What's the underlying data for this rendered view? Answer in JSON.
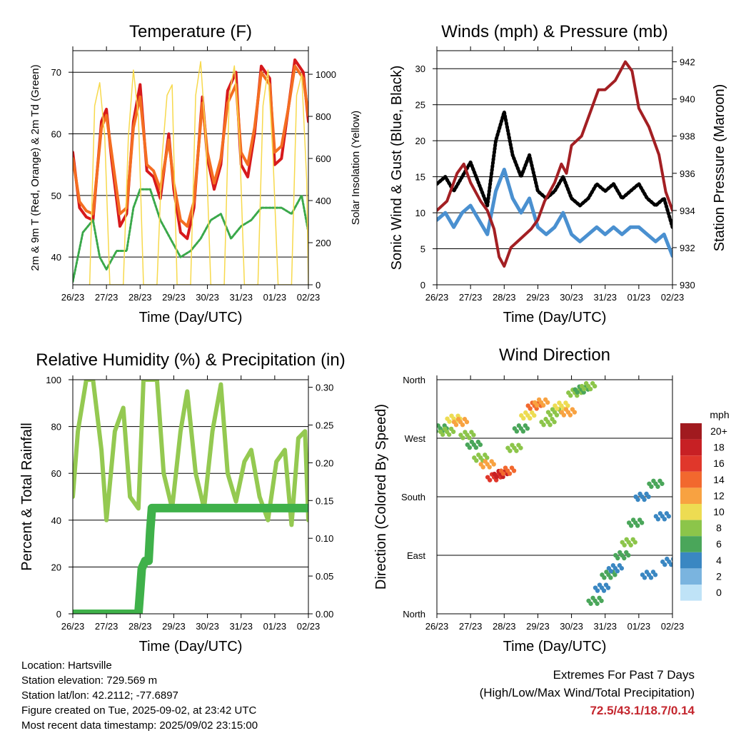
{
  "x_ticks": [
    "26/23",
    "27/23",
    "28/23",
    "29/23",
    "30/23",
    "31/23",
    "01/23",
    "02/23"
  ],
  "colors": {
    "temp_2m": "#d7191c",
    "temp_9m": "#f46d21",
    "dewpoint": "#3aa84a",
    "solar": "#f7d94c",
    "gust": "#000000",
    "wind": "#4a90d0",
    "pressure": "#a31f23",
    "rh": "#94c951",
    "precip": "#3fb14a"
  },
  "chart_data": [
    {
      "type": "line",
      "title": "Temperature (F)",
      "xlabel": "Time (Day/UTC)",
      "ylabel": "2m & 9m T (Red, Orange) & 2m Td (Green)",
      "y2label": "Solar Insolation (Yellow)",
      "ylim": [
        35.5,
        73.5
      ],
      "yticks": [
        40,
        50,
        60,
        70
      ],
      "y2lim": [
        0,
        1112
      ],
      "y2ticks": [
        0,
        200,
        400,
        600,
        800,
        1000
      ],
      "grid": true,
      "series": [
        {
          "key": "temp_2m",
          "axis": "left",
          "x": [
            0,
            0.2,
            0.4,
            0.6,
            0.85,
            1,
            1.15,
            1.4,
            1.6,
            1.8,
            2,
            2.2,
            2.4,
            2.6,
            2.85,
            3,
            3.2,
            3.4,
            3.6,
            3.85,
            4,
            4.2,
            4.4,
            4.6,
            4.85,
            5,
            5.2,
            5.4,
            5.6,
            5.85,
            6,
            6.2,
            6.4,
            6.6,
            6.85,
            7
          ],
          "y": [
            57,
            48,
            46.5,
            46,
            62,
            64,
            56,
            45,
            47,
            62,
            68,
            54,
            53,
            49.5,
            60,
            51,
            44,
            43,
            48,
            66,
            56,
            51,
            55,
            67,
            70,
            55,
            53,
            60,
            71,
            69,
            55,
            56,
            64,
            72,
            70,
            62
          ]
        },
        {
          "key": "temp_9m",
          "axis": "left",
          "x": [
            0,
            0.2,
            0.4,
            0.6,
            0.85,
            1,
            1.15,
            1.4,
            1.6,
            1.8,
            2,
            2.2,
            2.4,
            2.6,
            2.85,
            3,
            3.2,
            3.4,
            3.6,
            3.85,
            4,
            4.2,
            4.4,
            4.6,
            4.85,
            5,
            5.2,
            5.4,
            5.6,
            5.85,
            6,
            6.2,
            6.4,
            6.6,
            6.85,
            7
          ],
          "y": [
            56,
            49,
            47.5,
            47,
            61,
            63,
            57,
            47,
            48,
            61,
            66,
            55,
            54,
            51,
            59,
            52,
            46,
            45,
            49,
            65,
            57,
            52,
            56,
            65,
            68,
            57,
            55,
            61,
            70,
            68,
            57,
            58,
            64,
            71,
            69,
            63
          ]
        },
        {
          "key": "dewpoint",
          "axis": "left",
          "x": [
            0,
            0.3,
            0.6,
            0.8,
            1,
            1.3,
            1.6,
            1.8,
            2,
            2.3,
            2.6,
            2.9,
            3.2,
            3.5,
            3.8,
            4.1,
            4.4,
            4.7,
            5,
            5.3,
            5.6,
            5.9,
            6.2,
            6.5,
            6.8,
            7
          ],
          "y": [
            36,
            44,
            46,
            40,
            38,
            41,
            41,
            48,
            51,
            51,
            46,
            43,
            40,
            41,
            43,
            46,
            47,
            43,
            45,
            46,
            48,
            48,
            48,
            47,
            50,
            44
          ]
        },
        {
          "key": "solar",
          "axis": "right",
          "x": [
            0.5,
            0.65,
            0.8,
            0.95,
            1.1,
            1.5,
            1.65,
            1.8,
            1.95,
            2.1,
            2.5,
            2.65,
            2.8,
            2.95,
            3.1,
            3.5,
            3.65,
            3.8,
            3.95,
            4.1,
            4.5,
            4.65,
            4.8,
            4.95,
            5.1,
            5.5,
            5.65,
            5.8,
            5.95,
            6.1,
            6.5,
            6.65,
            6.8,
            6.95,
            7
          ],
          "y": [
            0,
            850,
            960,
            700,
            0,
            0,
            700,
            1020,
            800,
            0,
            0,
            600,
            900,
            950,
            0,
            0,
            900,
            1060,
            700,
            0,
            0,
            900,
            1040,
            700,
            0,
            0,
            850,
            1020,
            600,
            0,
            0,
            900,
            1000,
            500,
            0
          ]
        }
      ]
    },
    {
      "type": "line",
      "title": "Winds (mph) & Pressure (mb)",
      "xlabel": "Time (Day/UTC)",
      "ylabel": "Sonic Wind & Gust (Blue, Black)",
      "y2label": "Station Pressure (Maroon)",
      "ylim": [
        0,
        32.5
      ],
      "yticks": [
        0,
        5,
        10,
        15,
        20,
        25,
        30
      ],
      "y2lim": [
        930,
        942.6
      ],
      "y2ticks": [
        930,
        932,
        934,
        936,
        938,
        940,
        942
      ],
      "grid": true,
      "series": [
        {
          "key": "gust",
          "axis": "left",
          "x": [
            0,
            0.25,
            0.5,
            0.75,
            1,
            1.25,
            1.5,
            1.75,
            2,
            2.25,
            2.5,
            2.75,
            3,
            3.25,
            3.5,
            3.75,
            4,
            4.25,
            4.5,
            4.75,
            5,
            5.25,
            5.5,
            5.75,
            6,
            6.25,
            6.5,
            6.75,
            7
          ],
          "y": [
            14,
            15,
            13,
            15,
            17,
            14,
            11,
            20,
            24,
            18,
            15,
            18,
            13,
            12,
            13,
            15,
            12,
            11,
            12,
            14,
            13,
            14,
            12,
            13,
            14,
            12,
            11,
            12,
            8
          ]
        },
        {
          "key": "wind",
          "axis": "left",
          "x": [
            0,
            0.25,
            0.5,
            0.75,
            1,
            1.25,
            1.5,
            1.75,
            2,
            2.25,
            2.5,
            2.75,
            3,
            3.25,
            3.5,
            3.75,
            4,
            4.25,
            4.5,
            4.75,
            5,
            5.25,
            5.5,
            5.75,
            6,
            6.25,
            6.5,
            6.75,
            7
          ],
          "y": [
            9,
            10,
            8,
            10,
            11,
            9,
            7,
            13,
            16,
            12,
            10,
            12,
            8,
            7,
            8,
            10,
            7,
            6,
            7,
            8,
            7,
            8,
            7,
            8,
            8,
            7,
            6,
            7,
            4
          ]
        },
        {
          "key": "pressure",
          "axis": "right",
          "x": [
            0,
            0.3,
            0.6,
            0.8,
            1,
            1.3,
            1.5,
            1.7,
            1.85,
            2,
            2.2,
            2.5,
            2.8,
            3,
            3.2,
            3.5,
            3.7,
            3.85,
            4,
            4.3,
            4.6,
            4.8,
            5,
            5.3,
            5.6,
            5.8,
            6,
            6.3,
            6.6,
            6.8,
            7
          ],
          "y": [
            934,
            934.5,
            936,
            936.5,
            935.5,
            934.5,
            934,
            933,
            931.5,
            931,
            932,
            932.5,
            933,
            933.5,
            934.5,
            935.5,
            936.5,
            936,
            937.5,
            938,
            939.5,
            940.5,
            940.5,
            941,
            942,
            941.5,
            939.5,
            938.5,
            937,
            935,
            934
          ]
        }
      ]
    },
    {
      "type": "line",
      "title": "Relative Humidity (%) & Precipitation (in)",
      "xlabel": "Time (Day/UTC)",
      "ylabel": "Percent & Total Rainfall",
      "ylim": [
        0,
        100
      ],
      "yticks": [
        0,
        20,
        40,
        60,
        80,
        100
      ],
      "y2lim": [
        0,
        0.31
      ],
      "y2ticks": [
        0.0,
        0.05,
        0.1,
        0.15,
        0.2,
        0.25,
        0.3
      ],
      "grid": true,
      "series": [
        {
          "key": "rh",
          "axis": "left",
          "x": [
            0,
            0.15,
            0.4,
            0.6,
            0.85,
            1,
            1.25,
            1.5,
            1.7,
            1.95,
            2.1,
            2.3,
            2.5,
            2.7,
            2.95,
            3.2,
            3.4,
            3.65,
            3.9,
            4.15,
            4.4,
            4.6,
            4.85,
            5.1,
            5.3,
            5.55,
            5.8,
            6.05,
            6.3,
            6.5,
            6.7,
            6.9,
            7
          ],
          "y": [
            50,
            78,
            100,
            100,
            70,
            40,
            78,
            88,
            50,
            45,
            100,
            100,
            100,
            60,
            45,
            78,
            95,
            60,
            45,
            78,
            98,
            60,
            48,
            65,
            70,
            50,
            40,
            65,
            70,
            38,
            75,
            78,
            40
          ]
        },
        {
          "key": "precip",
          "axis": "right",
          "x": [
            0,
            0.5,
            1,
            1.5,
            1.95,
            2,
            2.05,
            2.15,
            2.25,
            2.3,
            2.35,
            2.5,
            3,
            4,
            5,
            6,
            7
          ],
          "y": [
            0,
            0,
            0,
            0,
            0,
            0.03,
            0.06,
            0.07,
            0.07,
            0.11,
            0.14,
            0.14,
            0.14,
            0.14,
            0.14,
            0.14,
            0.14
          ]
        }
      ]
    },
    {
      "type": "scatter",
      "title": "Wind Direction",
      "xlabel": "Time (Day/UTC)",
      "ylabel": "Direction (Colored By Speed)",
      "ylim": [
        0,
        360
      ],
      "yticks": [
        "North",
        "East",
        "South",
        "West",
        "North"
      ],
      "grid": true,
      "colorbar": {
        "unit": "mph",
        "labels": [
          "20+",
          "18",
          "16",
          "14",
          "12",
          "10",
          "8",
          "6",
          "4",
          "2",
          "0"
        ],
        "colors": [
          "#a11a1f",
          "#c72024",
          "#e0372b",
          "#f2682e",
          "#f8a241",
          "#eddc52",
          "#8cc54a",
          "#4aa65a",
          "#3a87c2",
          "#7ab4df",
          "#bfe3f7"
        ]
      },
      "x": [
        0.1,
        0.3,
        0.5,
        0.7,
        0.9,
        1.1,
        1.3,
        1.5,
        1.7,
        1.9,
        2.1,
        2.3,
        2.5,
        2.7,
        2.9,
        3.1,
        3.3,
        3.5,
        3.7,
        3.9,
        4.1,
        4.3,
        4.5,
        4.7,
        4.9,
        5.1,
        5.3,
        5.5,
        5.7,
        5.9,
        6.1,
        6.3,
        6.5,
        6.7,
        6.9
      ],
      "y": [
        285,
        280,
        300,
        295,
        275,
        260,
        240,
        230,
        210,
        215,
        220,
        255,
        285,
        305,
        320,
        325,
        295,
        310,
        320,
        310,
        340,
        345,
        350,
        20,
        40,
        60,
        70,
        90,
        110,
        140,
        180,
        60,
        200,
        150,
        80
      ],
      "speed": [
        6,
        8,
        10,
        12,
        8,
        6,
        8,
        12,
        16,
        18,
        14,
        8,
        6,
        10,
        14,
        12,
        8,
        8,
        10,
        12,
        8,
        6,
        8,
        6,
        4,
        6,
        4,
        6,
        8,
        6,
        4,
        3,
        6,
        4,
        3
      ]
    }
  ],
  "info": {
    "location": "Location: Hartsville",
    "elevation": "Station elevation: 729.569 m",
    "latlon": "Station lat/lon: 42.2112; -77.6897",
    "created": "Figure created on Tue, 2025-09-02, at 23:42 UTC",
    "recent": "Most recent data timestamp: 2025/09/02 23:15:00"
  },
  "extremes": {
    "title": "Extremes For Past 7 Days",
    "subtitle": "(High/Low/Max Wind/Total Precipitation)",
    "values": "72.5/43.1/18.7/0.14"
  }
}
